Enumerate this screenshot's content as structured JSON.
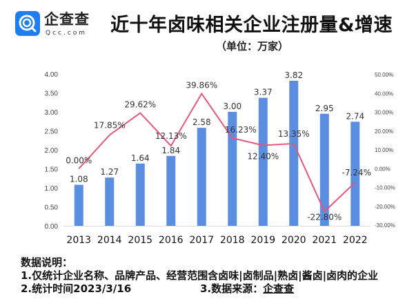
{
  "logo": {
    "name_cn": "企查查",
    "name_en": "Qcc.com",
    "brand_color": "#1e7ef0"
  },
  "header": {
    "title": "近十年卤味相关企业注册量&增速",
    "subtitle": "（单位：万家）"
  },
  "colors": {
    "bar": "#5b8ee0",
    "line": "#e4567a",
    "axis_text": "#444444",
    "label_text": "#333333"
  },
  "chart_data": {
    "type": "bar",
    "title": "近十年卤味相关企业注册量&增速",
    "subtitle": "（单位：万家）",
    "xlabel": "",
    "ylabel": "",
    "categories": [
      "2013",
      "2014",
      "2015",
      "2016",
      "2017",
      "2018",
      "2019",
      "2020",
      "2021",
      "2022"
    ],
    "series": [
      {
        "name": "注册量（万家）",
        "type": "bar",
        "axis": "left",
        "values": [
          1.08,
          1.27,
          1.64,
          1.84,
          2.58,
          3.0,
          3.37,
          3.82,
          2.95,
          2.74
        ],
        "labels": [
          "1.08",
          "1.27",
          "1.64",
          "1.84",
          "2.58",
          "3.00",
          "3.37",
          "3.82",
          "2.95",
          "2.74"
        ]
      },
      {
        "name": "增速",
        "type": "line",
        "axis": "right",
        "values": [
          0.0,
          17.85,
          29.62,
          12.13,
          39.86,
          16.23,
          12.4,
          13.35,
          -22.8,
          -7.24
        ],
        "labels": [
          "0.00%",
          "17.85%",
          "29.62%",
          "12.13%",
          "39.86%",
          "16.23%",
          "12.40%",
          "13.35%",
          "-22.80%",
          "-7.24%"
        ]
      }
    ],
    "ylim": [
      0,
      4
    ],
    "y_ticks": [
      "0.00",
      "0.50",
      "1.00",
      "1.50",
      "2.00",
      "2.50",
      "3.00",
      "3.50",
      "4.00"
    ],
    "y2lim": [
      -30,
      50
    ],
    "y2_ticks": [
      "-30.00%",
      "-20.00%",
      "-10.00%",
      "0.00%",
      "10.00%",
      "20.00%",
      "30.00%",
      "40.00%",
      "50.00%"
    ],
    "grid": false,
    "legend": "none"
  },
  "notes": {
    "heading": "数据说明：",
    "line1": "1.仅统计企业名称、品牌产品、经营范围含卤味|卤制品|熟卤|酱卤|卤肉的企业",
    "line2": "2.统计时间2023/3/16",
    "line3_prefix": "3.数据来源：",
    "line3_source": "企查查"
  }
}
